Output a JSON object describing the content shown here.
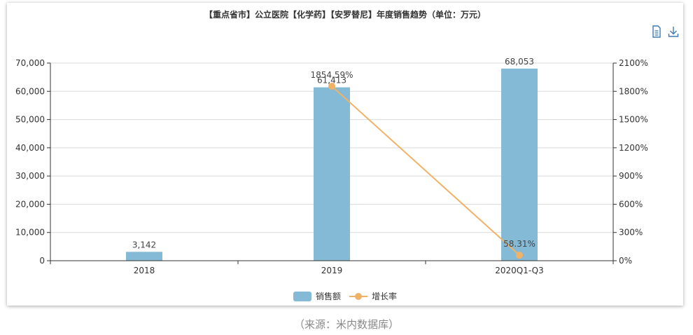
{
  "title": "【重点省市】公立医院【化学药】【安罗替尼】年度销售趋势（单位：万元）",
  "toolbar": {
    "doc_icon": "document-icon",
    "download_icon": "download-icon"
  },
  "source": "（来源：米内数据库）",
  "colors": {
    "bar": "#84bad5",
    "line": "#f0b266",
    "axis": "#333333",
    "grid": "#d9d9d9"
  },
  "chart_data": {
    "type": "bar",
    "categories": [
      "2018",
      "2019",
      "2020Q1-Q3"
    ],
    "series": [
      {
        "name": "销售额",
        "type": "bar",
        "axis": "left",
        "values": [
          3142,
          61413,
          68053
        ],
        "labels": [
          "3,142",
          "61,413",
          "68,053"
        ]
      },
      {
        "name": "增长率",
        "type": "line",
        "axis": "right",
        "values": [
          null,
          1854.59,
          58.31
        ],
        "labels": [
          "",
          "1854.59%",
          "58.31%"
        ]
      }
    ],
    "y_left": {
      "min": 0,
      "max": 70000,
      "ticks": [
        "0",
        "10,000",
        "20,000",
        "30,000",
        "40,000",
        "50,000",
        "60,000",
        "70,000"
      ]
    },
    "y_right": {
      "min": 0,
      "max": 2100,
      "ticks": [
        "0%",
        "300%",
        "600%",
        "900%",
        "1200%",
        "1500%",
        "1800%",
        "2100%"
      ]
    },
    "grid": true,
    "legend_position": "bottom"
  }
}
